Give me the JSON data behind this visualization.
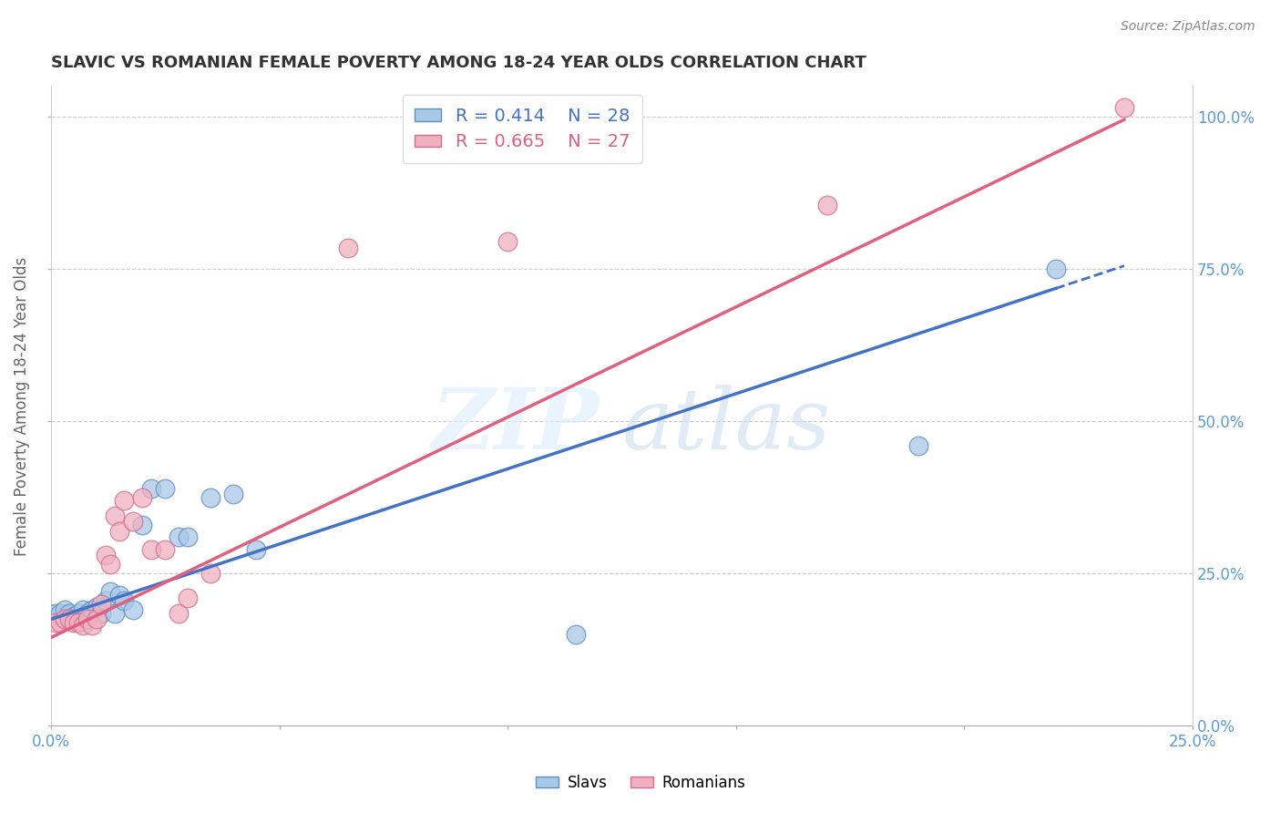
{
  "title": "SLAVIC VS ROMANIAN FEMALE POVERTY AMONG 18-24 YEAR OLDS CORRELATION CHART",
  "source": "Source: ZipAtlas.com",
  "xlabel": "",
  "ylabel": "Female Poverty Among 18-24 Year Olds",
  "xlim": [
    0.0,
    0.25
  ],
  "ylim": [
    0.0,
    1.05
  ],
  "slavs_R": 0.414,
  "slavs_N": 28,
  "romanians_R": 0.665,
  "romanians_N": 27,
  "slavs_color": "#A8C8E8",
  "romanians_color": "#F0B0C0",
  "slavs_line_color": "#4472C4",
  "romanians_line_color": "#E06080",
  "slavs_x": [
    0.001,
    0.002,
    0.003,
    0.004,
    0.005,
    0.006,
    0.007,
    0.008,
    0.009,
    0.01,
    0.011,
    0.012,
    0.013,
    0.014,
    0.015,
    0.016,
    0.018,
    0.02,
    0.022,
    0.025,
    0.028,
    0.03,
    0.035,
    0.04,
    0.045,
    0.19,
    0.22,
    0.115
  ],
  "slavs_y": [
    0.185,
    0.185,
    0.19,
    0.185,
    0.18,
    0.185,
    0.19,
    0.185,
    0.19,
    0.195,
    0.185,
    0.205,
    0.22,
    0.185,
    0.215,
    0.205,
    0.19,
    0.33,
    0.39,
    0.39,
    0.31,
    0.31,
    0.375,
    0.38,
    0.29,
    0.46,
    0.75,
    0.15
  ],
  "romanians_x": [
    0.001,
    0.002,
    0.003,
    0.004,
    0.005,
    0.006,
    0.007,
    0.008,
    0.009,
    0.01,
    0.011,
    0.012,
    0.013,
    0.014,
    0.015,
    0.016,
    0.018,
    0.02,
    0.022,
    0.025,
    0.028,
    0.03,
    0.035,
    0.065,
    0.1,
    0.17,
    0.235
  ],
  "romanians_y": [
    0.17,
    0.17,
    0.175,
    0.175,
    0.17,
    0.17,
    0.165,
    0.175,
    0.165,
    0.175,
    0.2,
    0.28,
    0.265,
    0.345,
    0.32,
    0.37,
    0.335,
    0.375,
    0.29,
    0.29,
    0.185,
    0.21,
    0.25,
    0.785,
    0.795,
    0.855,
    1.015
  ],
  "slavs_line_x0": 0.0,
  "slavs_line_y0": 0.175,
  "slavs_line_x1": 0.235,
  "slavs_line_y1": 0.755,
  "romanians_line_x0": 0.0,
  "romanians_line_y0": 0.145,
  "romanians_line_x1": 0.235,
  "romanians_line_y1": 0.995,
  "yticks": [
    0.0,
    0.25,
    0.5,
    0.75,
    1.0
  ],
  "ytick_labels_right": [
    "0.0%",
    "25.0%",
    "50.0%",
    "75.0%",
    "100.0%"
  ],
  "xticks": [
    0.0,
    0.05,
    0.1,
    0.15,
    0.2,
    0.25
  ],
  "xtick_labels": [
    "0.0%",
    "",
    "",
    "",
    "",
    "25.0%"
  ]
}
